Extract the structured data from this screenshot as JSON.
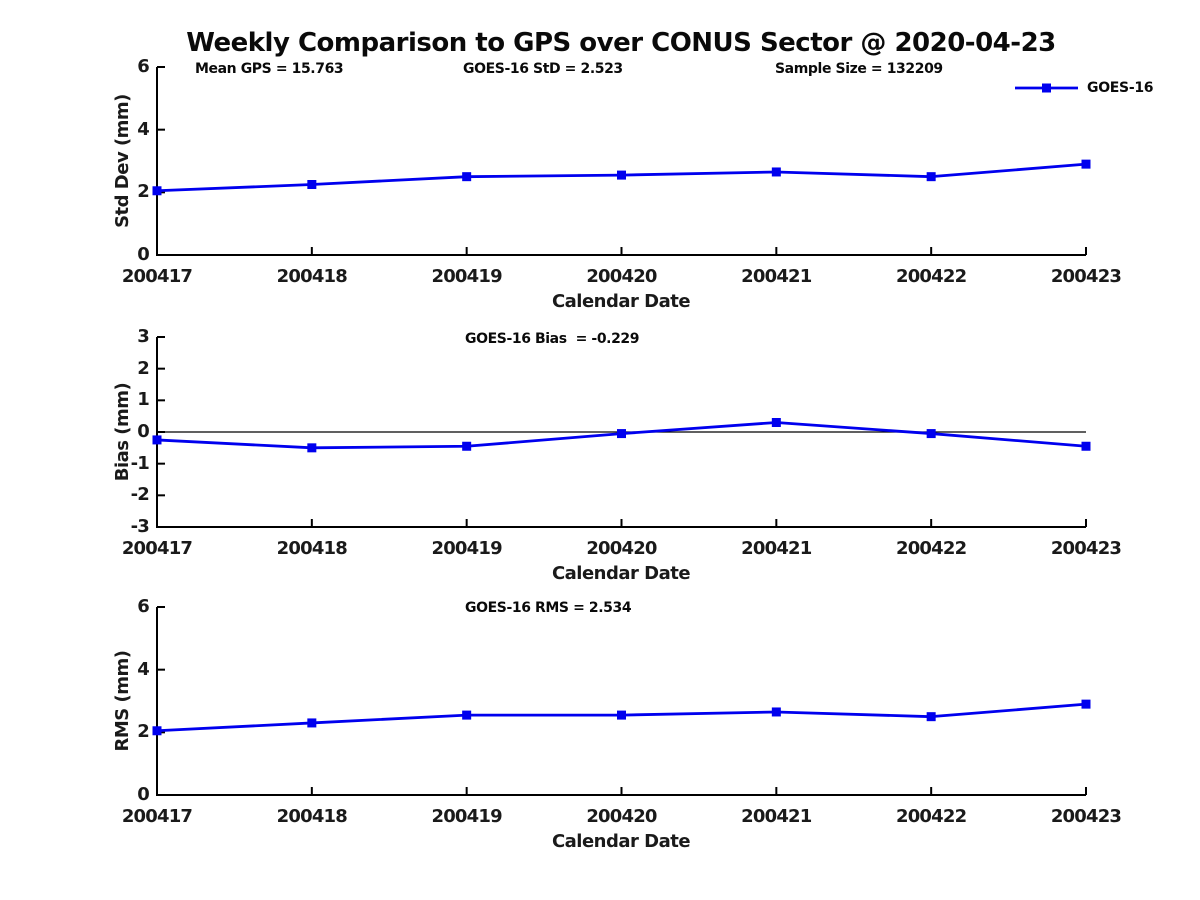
{
  "title": "Weekly Comparison to GPS over CONUS Sector @ 2020-04-23",
  "colors": {
    "series": "#0000ee",
    "axis": "#000000",
    "zero_line": "#000000",
    "background": "#ffffff"
  },
  "stats": {
    "mean_gps": "15.763",
    "goes16_std": "2.523",
    "sample_size": "132209",
    "goes16_bias": "-0.229",
    "goes16_rms": "2.534"
  },
  "chart_data": [
    {
      "type": "line",
      "ylabel": "Std Dev (mm)",
      "xlabel": "Calendar Date",
      "ylim": [
        0,
        6
      ],
      "yticks": [
        0,
        2,
        4,
        6
      ],
      "categories": [
        "200417",
        "200418",
        "200419",
        "200420",
        "200421",
        "200422",
        "200423"
      ],
      "series": [
        {
          "name": "GOES-16",
          "values": [
            2.05,
            2.25,
            2.5,
            2.55,
            2.65,
            2.5,
            2.9
          ]
        }
      ],
      "annotations": [
        "Mean GPS = 15.763",
        "GOES-16 StD = 2.523",
        "Sample Size = 132209"
      ],
      "legend_position": "top-right",
      "grid": false,
      "zero_line": false,
      "marker": "square"
    },
    {
      "type": "line",
      "ylabel": "Bias (mm)",
      "xlabel": "Calendar Date",
      "ylim": [
        -3,
        3
      ],
      "yticks": [
        -3,
        -2,
        -1,
        0,
        1,
        2,
        3
      ],
      "categories": [
        "200417",
        "200418",
        "200419",
        "200420",
        "200421",
        "200422",
        "200423"
      ],
      "series": [
        {
          "name": "GOES-16",
          "values": [
            -0.25,
            -0.5,
            -0.45,
            -0.05,
            0.3,
            -0.05,
            -0.45
          ]
        }
      ],
      "annotations": [
        "GOES-16 Bias  = -0.229"
      ],
      "legend_position": "none",
      "grid": false,
      "zero_line": true,
      "marker": "square"
    },
    {
      "type": "line",
      "ylabel": "RMS (mm)",
      "xlabel": "Calendar Date",
      "ylim": [
        0,
        6
      ],
      "yticks": [
        0,
        2,
        4,
        6
      ],
      "categories": [
        "200417",
        "200418",
        "200419",
        "200420",
        "200421",
        "200422",
        "200423"
      ],
      "series": [
        {
          "name": "GOES-16",
          "values": [
            2.05,
            2.3,
            2.55,
            2.55,
            2.65,
            2.5,
            2.9
          ]
        }
      ],
      "annotations": [
        "GOES-16 RMS = 2.534"
      ],
      "legend_position": "none",
      "grid": false,
      "zero_line": true,
      "marker": "square"
    }
  ]
}
